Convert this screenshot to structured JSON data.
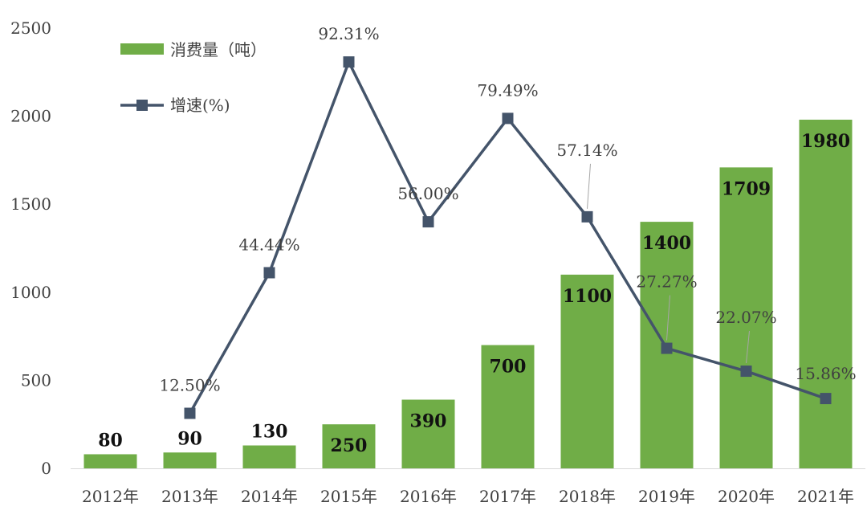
{
  "chart_data": {
    "type": "bar",
    "categories": [
      "2012年",
      "2013年",
      "2014年",
      "2015年",
      "2016年",
      "2017年",
      "2018年",
      "2019年",
      "2020年",
      "2021年"
    ],
    "series": [
      {
        "name": "消费量（吨）",
        "type": "bar",
        "color": "#70ad47",
        "values": [
          80,
          90,
          130,
          250,
          390,
          700,
          1100,
          1400,
          1709,
          1980
        ],
        "labels": [
          "80",
          "90",
          "130",
          "250",
          "390",
          "700",
          "1100",
          "1400",
          "1709",
          "1980"
        ]
      },
      {
        "name": "增速(%)",
        "type": "line",
        "color": "#44546a",
        "values": [
          null,
          12.5,
          44.44,
          92.31,
          56.0,
          79.49,
          57.14,
          27.27,
          22.07,
          15.86
        ],
        "labels": [
          "",
          "12.50%",
          "44.44%",
          "92.31%",
          "56.00%",
          "79.49%",
          "57.14%",
          "27.27%",
          "22.07%",
          "15.86%"
        ]
      }
    ],
    "y_axis": {
      "ticks": [
        "0",
        "500",
        "1000",
        "1500",
        "2000",
        "2500"
      ],
      "ylim": [
        0,
        2500
      ]
    },
    "line_scale": [
      0,
      100
    ],
    "legend_position": "top-left",
    "grid": false
  }
}
